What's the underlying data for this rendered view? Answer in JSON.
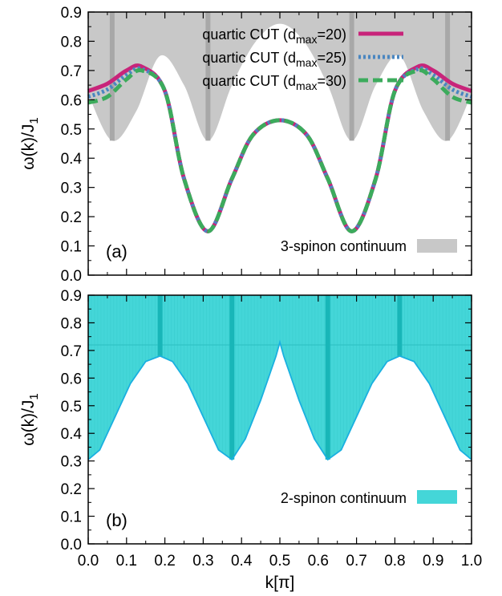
{
  "chart_data": [
    {
      "type": "line",
      "panel_label": "(a)",
      "ylabel": "ω(k)/J1",
      "ylabel_parts": {
        "base": "ω(k)/J",
        "sub": "1"
      },
      "xlim": [
        0.0,
        1.0
      ],
      "ylim": [
        0.0,
        0.9
      ],
      "x_ticks": [
        "0.0",
        "0.1",
        "0.2",
        "0.3",
        "0.4",
        "0.5",
        "0.6",
        "0.7",
        "0.8",
        "0.9",
        "1.0"
      ],
      "y_ticks": [
        "0.0",
        "0.1",
        "0.2",
        "0.3",
        "0.4",
        "0.5",
        "0.6",
        "0.7",
        "0.8",
        "0.9"
      ],
      "grid": false,
      "legend_position": "top-center",
      "continuum": {
        "name": "3-spinon continuum",
        "color": "#c8c8c8",
        "dark_color": "#a8a8a8",
        "lower_points": {
          "x": [
            0.0,
            0.0625,
            0.125,
            0.1875,
            0.25,
            0.3125,
            0.375,
            0.4375,
            0.5,
            0.5625,
            0.625,
            0.6875,
            0.75,
            0.8125,
            0.875,
            0.9375,
            1.0
          ],
          "y": [
            0.62,
            0.46,
            0.56,
            0.75,
            0.65,
            0.46,
            0.65,
            0.8,
            0.86,
            0.8,
            0.65,
            0.46,
            0.65,
            0.75,
            0.56,
            0.46,
            0.62
          ]
        },
        "upper": 0.9,
        "dark_stripes_x": [
          0.0625,
          0.3125,
          0.6875,
          0.9375
        ]
      },
      "series": [
        {
          "name": "quartic CUT (dmax=20)",
          "name_parts": {
            "pre": "quartic CUT (d",
            "sub": "max",
            "post": "=20)"
          },
          "color": "#c8247a",
          "style": "solid",
          "x": [
            0.0,
            0.05,
            0.1,
            0.14,
            0.2,
            0.25,
            0.3125,
            0.375,
            0.43,
            0.5,
            0.57,
            0.625,
            0.6875,
            0.75,
            0.8,
            0.86,
            0.9,
            0.95,
            1.0
          ],
          "y": [
            0.63,
            0.655,
            0.7,
            0.713,
            0.63,
            0.33,
            0.15,
            0.33,
            0.48,
            0.53,
            0.48,
            0.33,
            0.15,
            0.33,
            0.63,
            0.713,
            0.7,
            0.655,
            0.63
          ]
        },
        {
          "name": "quartic CUT (dmax=25)",
          "name_parts": {
            "pre": "quartic CUT (d",
            "sub": "max",
            "post": "=25)"
          },
          "color": "#4a86c0",
          "style": "dotted",
          "x": [
            0.0,
            0.05,
            0.1,
            0.14,
            0.2,
            0.25,
            0.3125,
            0.375,
            0.43,
            0.5,
            0.57,
            0.625,
            0.6875,
            0.75,
            0.8,
            0.86,
            0.9,
            0.95,
            1.0
          ],
          "y": [
            0.61,
            0.635,
            0.685,
            0.705,
            0.63,
            0.33,
            0.15,
            0.33,
            0.48,
            0.53,
            0.48,
            0.33,
            0.15,
            0.33,
            0.63,
            0.705,
            0.685,
            0.635,
            0.61
          ]
        },
        {
          "name": "quartic CUT (dmax=30)",
          "name_parts": {
            "pre": "quartic CUT (d",
            "sub": "max",
            "post": "=30)"
          },
          "color": "#3cab5c",
          "style": "dashed",
          "x": [
            0.0,
            0.05,
            0.1,
            0.14,
            0.2,
            0.25,
            0.3125,
            0.375,
            0.43,
            0.5,
            0.57,
            0.625,
            0.6875,
            0.75,
            0.8,
            0.86,
            0.9,
            0.95,
            1.0
          ],
          "y": [
            0.59,
            0.61,
            0.67,
            0.7,
            0.63,
            0.33,
            0.15,
            0.33,
            0.48,
            0.53,
            0.48,
            0.33,
            0.15,
            0.33,
            0.63,
            0.7,
            0.67,
            0.61,
            0.59
          ]
        }
      ]
    },
    {
      "type": "area",
      "panel_label": "(b)",
      "xlabel": "k[π]",
      "ylabel": "ω(k)/J1",
      "ylabel_parts": {
        "base": "ω(k)/J",
        "sub": "1"
      },
      "xlim": [
        0.0,
        1.0
      ],
      "ylim": [
        0.0,
        0.9
      ],
      "x_ticks": [
        "0.0",
        "0.1",
        "0.2",
        "0.3",
        "0.4",
        "0.5",
        "0.6",
        "0.7",
        "0.8",
        "0.9",
        "1.0"
      ],
      "y_ticks": [
        "0.0",
        "0.1",
        "0.2",
        "0.3",
        "0.4",
        "0.5",
        "0.6",
        "0.7",
        "0.8",
        "0.9"
      ],
      "grid": false,
      "legend_position": "bottom-right",
      "continuum": {
        "name": "2-spinon continuum",
        "color": "#44d6d8",
        "edge_color": "#1ab0e0",
        "dark_color": "#18b6b8",
        "lower_points": {
          "x": [
            0.0,
            0.03,
            0.07,
            0.11,
            0.15,
            0.1875,
            0.22,
            0.26,
            0.3,
            0.34,
            0.375,
            0.41,
            0.45,
            0.49,
            0.5,
            0.51,
            0.55,
            0.59,
            0.625,
            0.66,
            0.7,
            0.74,
            0.78,
            0.8125,
            0.85,
            0.89,
            0.93,
            0.97,
            1.0
          ],
          "y": [
            0.305,
            0.34,
            0.46,
            0.58,
            0.66,
            0.68,
            0.66,
            0.58,
            0.46,
            0.34,
            0.305,
            0.38,
            0.52,
            0.68,
            0.73,
            0.68,
            0.52,
            0.38,
            0.305,
            0.34,
            0.46,
            0.58,
            0.66,
            0.68,
            0.66,
            0.58,
            0.46,
            0.34,
            0.305
          ]
        },
        "upper": 0.9,
        "dark_stripes_x": [
          0.1875,
          0.375,
          0.625,
          0.8125
        ],
        "horizontal_line_y": 0.72
      }
    }
  ]
}
